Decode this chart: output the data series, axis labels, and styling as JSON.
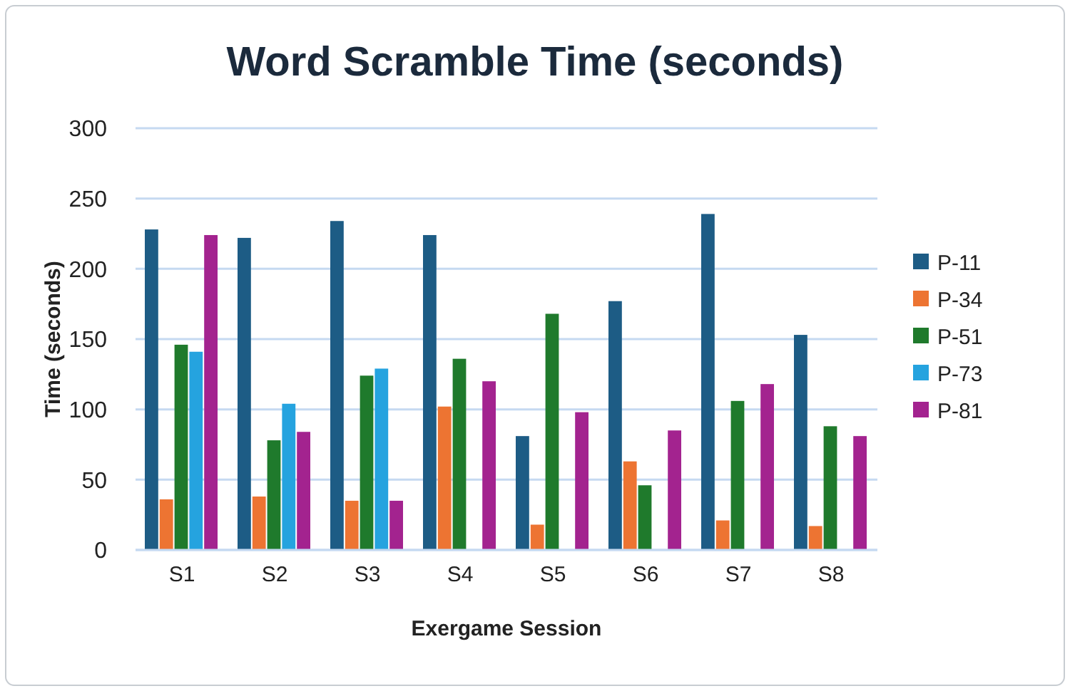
{
  "chart_data": {
    "type": "bar",
    "title": "Word Scramble Time (seconds)",
    "xlabel": "Exergame Session",
    "ylabel": "Time (seconds)",
    "categories": [
      "S1",
      "S2",
      "S3",
      "S4",
      "S5",
      "S6",
      "S7",
      "S8"
    ],
    "series": [
      {
        "name": "P-11",
        "color": "#1d5c85",
        "values": [
          228,
          222,
          234,
          224,
          81,
          177,
          239,
          153
        ]
      },
      {
        "name": "P-34",
        "color": "#ed7432",
        "values": [
          36,
          38,
          35,
          102,
          18,
          63,
          21,
          17
        ]
      },
      {
        "name": "P-51",
        "color": "#1f7a2c",
        "values": [
          146,
          78,
          124,
          136,
          168,
          46,
          106,
          88
        ]
      },
      {
        "name": "P-73",
        "color": "#25a3df",
        "values": [
          141,
          104,
          129,
          null,
          null,
          null,
          null,
          null
        ]
      },
      {
        "name": "P-81",
        "color": "#a3238f",
        "values": [
          224,
          84,
          35,
          120,
          98,
          85,
          118,
          81
        ]
      }
    ],
    "ylim": [
      0,
      300
    ],
    "yticks": [
      0,
      50,
      100,
      150,
      200,
      250,
      300
    ],
    "grid": "y",
    "legend": "right"
  }
}
